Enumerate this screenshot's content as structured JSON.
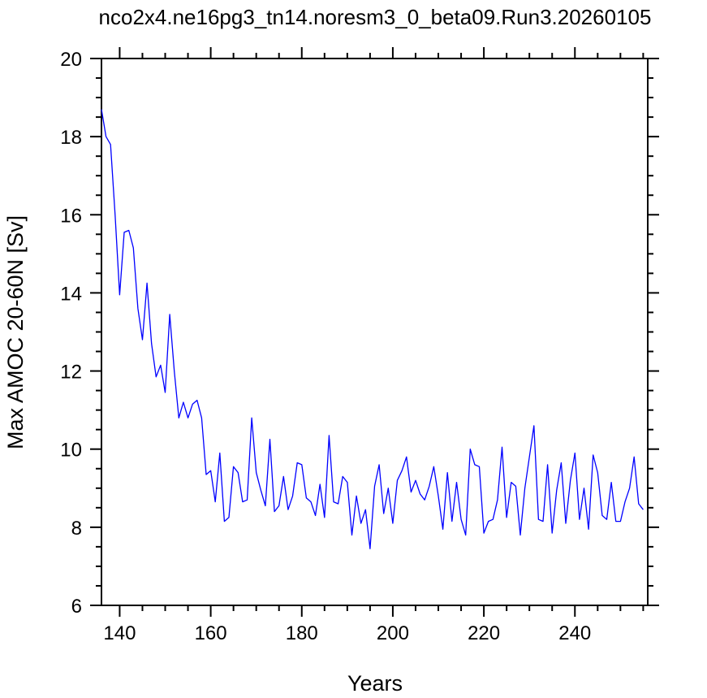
{
  "chart_data": {
    "type": "line",
    "title": "nco2x4.ne16pg3_tn14.noresm3_0_beta09.Run3.20260105",
    "xlabel": "Years",
    "ylabel": "Max AMOC 20-60N [Sv]",
    "xlim": [
      136,
      256
    ],
    "ylim": [
      6,
      20
    ],
    "x_ticks": [
      140,
      160,
      180,
      200,
      220,
      240
    ],
    "y_ticks": [
      6,
      8,
      10,
      12,
      14,
      16,
      18,
      20
    ],
    "grid": false,
    "line_color": "#0000ff",
    "series": [
      {
        "x": [
          136,
          137,
          138,
          139,
          140,
          141,
          142,
          143,
          144,
          145,
          146,
          147,
          148,
          149,
          150,
          151,
          152,
          153,
          154,
          155,
          156,
          157,
          158,
          159,
          160,
          161,
          162,
          163,
          164,
          165,
          166,
          167,
          168,
          169,
          170,
          171,
          172,
          173,
          174,
          175,
          176,
          177,
          178,
          179,
          180,
          181,
          182,
          183,
          184,
          185,
          186,
          187,
          188,
          189,
          190,
          191,
          192,
          193,
          194,
          195,
          196,
          197,
          198,
          199,
          200,
          201,
          202,
          203,
          204,
          205,
          206,
          207,
          208,
          209,
          210,
          211,
          212,
          213,
          214,
          215,
          216,
          217,
          218,
          219,
          220,
          221,
          222,
          223,
          224,
          225,
          226,
          227,
          228,
          229,
          230,
          231,
          232,
          233,
          234,
          235,
          236,
          237,
          238,
          239,
          240,
          241,
          242,
          243,
          244,
          245,
          246,
          247,
          248,
          249,
          250,
          251,
          252,
          253,
          254,
          255
        ],
        "values": [
          18.7,
          18.0,
          17.8,
          16.0,
          13.95,
          15.55,
          15.6,
          15.15,
          13.6,
          12.8,
          14.25,
          12.7,
          11.85,
          12.15,
          11.45,
          13.45,
          12.0,
          10.8,
          11.2,
          10.8,
          11.15,
          11.25,
          10.8,
          9.35,
          9.45,
          8.65,
          9.9,
          8.15,
          8.25,
          9.55,
          9.4,
          8.65,
          8.7,
          10.8,
          9.4,
          8.95,
          8.55,
          10.25,
          8.4,
          8.55,
          9.3,
          8.45,
          8.8,
          9.65,
          9.6,
          8.75,
          8.65,
          8.3,
          9.1,
          8.25,
          10.35,
          8.65,
          8.6,
          9.3,
          9.15,
          7.8,
          8.8,
          8.1,
          8.45,
          7.45,
          9.05,
          9.6,
          8.35,
          9.0,
          8.1,
          9.2,
          9.45,
          9.8,
          8.9,
          9.2,
          8.85,
          8.7,
          9.05,
          9.55,
          8.8,
          7.95,
          9.4,
          8.15,
          9.15,
          8.2,
          7.8,
          10.0,
          9.6,
          9.55,
          7.85,
          8.15,
          8.2,
          8.7,
          10.05,
          8.25,
          9.15,
          9.05,
          7.8,
          9.0,
          9.8,
          10.6,
          8.2,
          8.15,
          9.6,
          7.85,
          8.95,
          9.65,
          8.1,
          9.2,
          9.9,
          8.2,
          9.0,
          7.95,
          9.85,
          9.4,
          8.3,
          8.2,
          9.15,
          8.15,
          8.15,
          8.65,
          9.0,
          9.8,
          8.6,
          8.45
        ]
      }
    ]
  }
}
